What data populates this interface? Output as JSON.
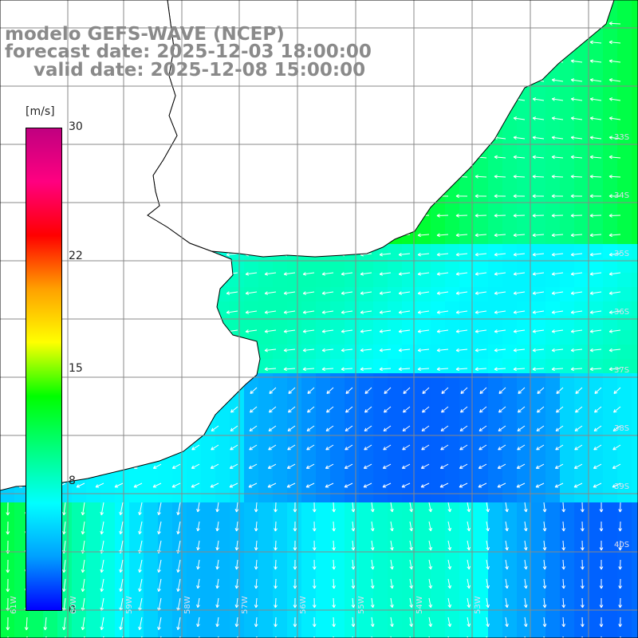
{
  "title": {
    "line1": "modelo GEFS-WAVE (NCEP)",
    "line2": "forecast date: 2025-12-03 18:00:00",
    "line3": "valid date: 2025-12-08 15:00:00"
  },
  "colorbar": {
    "unit": "[m/s]",
    "ticks": [
      "30",
      "22",
      "15",
      "8",
      "0"
    ],
    "tick_values": [
      30,
      22,
      15,
      8,
      0
    ],
    "min": 0,
    "max": 30,
    "colors": [
      "#0000ff",
      "#00a0ff",
      "#00ffff",
      "#00ff80",
      "#00ff00",
      "#ffff00",
      "#ffa000",
      "#ff0000",
      "#ff0080",
      "#c00080"
    ]
  },
  "map": {
    "lat_labels": [
      "33S",
      "34S",
      "35S",
      "36S",
      "37S",
      "38S",
      "39S",
      "40S"
    ],
    "lon_labels": [
      "61W",
      "60W",
      "59W",
      "58W",
      "57W",
      "56W",
      "55W",
      "54W",
      "53W"
    ],
    "land_color": "#ffffff",
    "grid_color": "#888888",
    "arrow_color": "#ffffff",
    "coast_color": "#000000"
  }
}
